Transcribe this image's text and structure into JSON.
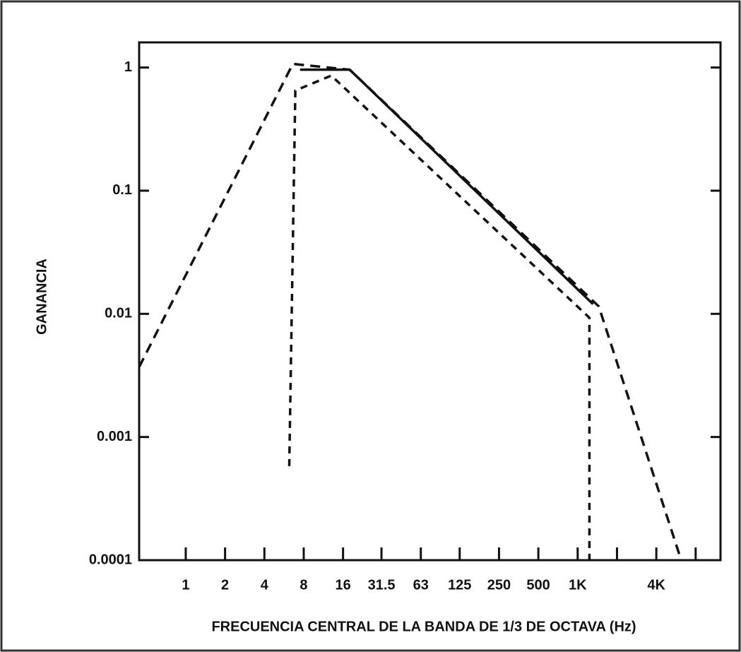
{
  "chart_data": {
    "type": "line",
    "y_label": "GANANCIA",
    "x_label": "FRECUENCIA CENTRAL DE LA BANDA DE 1/3 DE OCTAVA (Hz)",
    "xscale": "log",
    "yscale": "log",
    "xlim": [
      0.44,
      12400
    ],
    "ylim": [
      0.0001,
      1.6
    ],
    "xticks": [
      1,
      2,
      4,
      8,
      16,
      31.5,
      63,
      125,
      250,
      500,
      {
        "value": 1000,
        "label": "1K"
      },
      {
        "value": 4000,
        "label": "4K"
      }
    ],
    "minor_xticks": [
      2000,
      8000
    ],
    "yticks": [
      1,
      0.1,
      0.01,
      0.001,
      0.0001
    ],
    "series": [
      {
        "color": "#111111",
        "dash": "14 9",
        "x": [
          0.44,
          6.6,
          18,
          1450,
          6200
        ],
        "values": [
          0.0037,
          1.07,
          0.96,
          0.0115,
          0.0001
        ]
      },
      {
        "color": "#111111",
        "dash": "none",
        "x": [
          7.5,
          18,
          1310
        ],
        "values": [
          0.96,
          0.96,
          0.012
        ]
      },
      {
        "color": "#111111",
        "dash": "10 8",
        "x": [
          6.2,
          6.9,
          13,
          1230,
          1230
        ],
        "values": [
          0.00058,
          0.65,
          0.86,
          0.0093,
          0.0001
        ]
      }
    ]
  }
}
